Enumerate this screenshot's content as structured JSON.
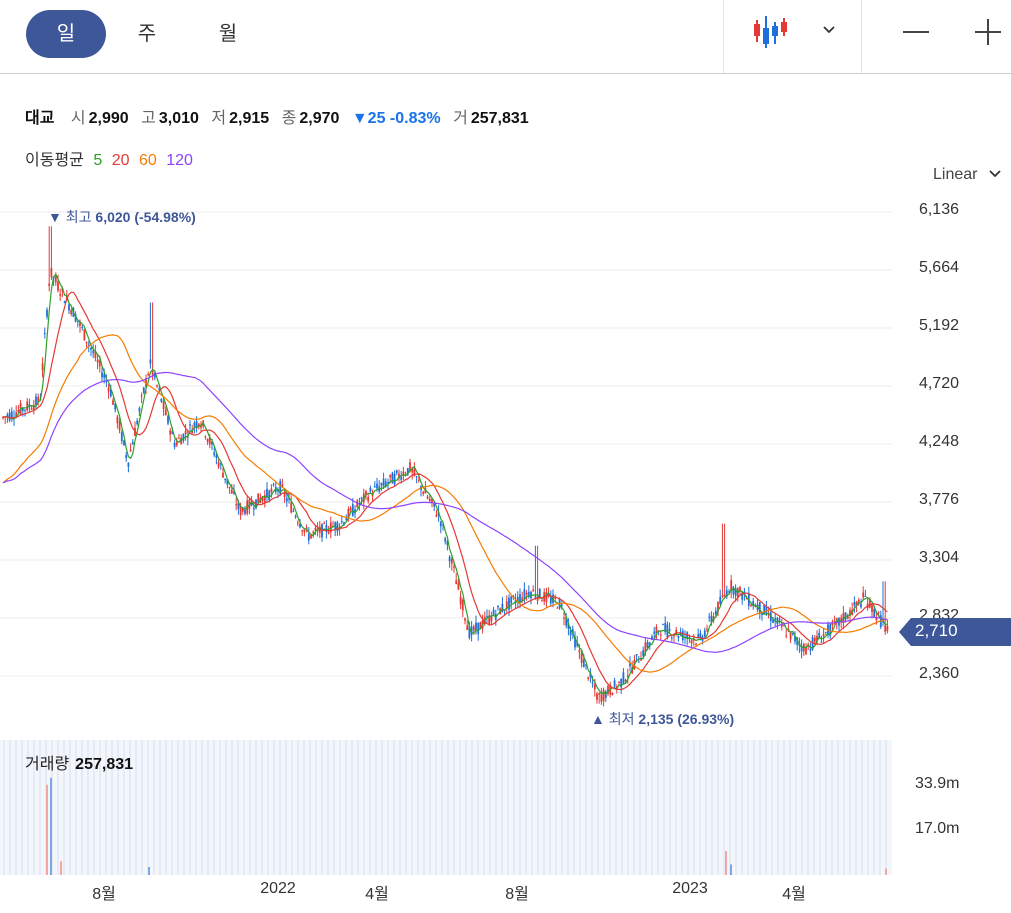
{
  "periods": [
    {
      "label": "일",
      "active": true
    },
    {
      "label": "주",
      "active": false
    },
    {
      "label": "월",
      "active": false
    }
  ],
  "icons": {
    "chart_type": "candlestick-icon",
    "dropdown": "chevron-down-icon",
    "zoom_out": "minus-icon",
    "zoom_in": "plus-icon",
    "scale_dropdown": "chevron-down-icon"
  },
  "quote": {
    "name": "대교",
    "open_label": "시",
    "open": "2,990",
    "high_label": "고",
    "high": "3,010",
    "low_label": "저",
    "low": "2,915",
    "close_label": "종",
    "close": "2,970",
    "change": "▼25 -0.83%",
    "volume_label": "거",
    "volume": "257,831"
  },
  "moving_average": {
    "label": "이동평균",
    "periods": [
      {
        "value": "5",
        "color": "#2ca02c"
      },
      {
        "value": "20",
        "color": "#e53935"
      },
      {
        "value": "60",
        "color": "#f57c00"
      },
      {
        "value": "120",
        "color": "#8e44ff"
      }
    ]
  },
  "scale_mode": "Linear",
  "current_price": "2,710",
  "extremes": {
    "high": {
      "label": "최고",
      "value": "6,020 (-54.98%)"
    },
    "low": {
      "label": "최저",
      "value": "2,135 (26.93%)"
    }
  },
  "volume": {
    "label": "거래량",
    "value": "257,831"
  },
  "colors": {
    "up": "#e53935",
    "down": "#1e6fd9",
    "accent": "#3e5799"
  },
  "chart_data": {
    "type": "candlestick",
    "price_axis": {
      "ticks": [
        "6,136",
        "5,664",
        "5,192",
        "4,720",
        "4,248",
        "3,776",
        "3,304",
        "2,832",
        "2,360"
      ],
      "ylim": [
        2100,
        6200
      ]
    },
    "volume_axis": {
      "ticks": [
        "33.9m",
        "17.0m"
      ]
    },
    "x_ticks": [
      "8월",
      "2022",
      "4월",
      "8월",
      "2023",
      "4월"
    ],
    "grid": true,
    "trend": [
      {
        "x": 0,
        "price": 4450
      },
      {
        "x": 40,
        "price": 4600
      },
      {
        "x": 50,
        "price": 5650
      },
      {
        "x": 75,
        "price": 5300
      },
      {
        "x": 110,
        "price": 4700
      },
      {
        "x": 128,
        "price": 4100
      },
      {
        "x": 150,
        "price": 4900
      },
      {
        "x": 175,
        "price": 4250
      },
      {
        "x": 200,
        "price": 4450
      },
      {
        "x": 240,
        "price": 3700
      },
      {
        "x": 280,
        "price": 3900
      },
      {
        "x": 308,
        "price": 3500
      },
      {
        "x": 340,
        "price": 3600
      },
      {
        "x": 370,
        "price": 3850
      },
      {
        "x": 410,
        "price": 4050
      },
      {
        "x": 440,
        "price": 3650
      },
      {
        "x": 470,
        "price": 2700
      },
      {
        "x": 500,
        "price": 2900
      },
      {
        "x": 530,
        "price": 3050
      },
      {
        "x": 560,
        "price": 2950
      },
      {
        "x": 598,
        "price": 2180
      },
      {
        "x": 620,
        "price": 2300
      },
      {
        "x": 660,
        "price": 2750
      },
      {
        "x": 700,
        "price": 2650
      },
      {
        "x": 730,
        "price": 3100
      },
      {
        "x": 770,
        "price": 2850
      },
      {
        "x": 805,
        "price": 2580
      },
      {
        "x": 840,
        "price": 2800
      },
      {
        "x": 865,
        "price": 3000
      },
      {
        "x": 888,
        "price": 2720
      }
    ],
    "volume_spikes": [
      {
        "x": 46,
        "volume": 33.9
      },
      {
        "x": 50,
        "volume": 36.5
      },
      {
        "x": 60,
        "volume": 5.2
      },
      {
        "x": 148,
        "volume": 3.0
      },
      {
        "x": 725,
        "volume": 9.0
      },
      {
        "x": 730,
        "volume": 4.0
      },
      {
        "x": 885,
        "volume": 2.5
      }
    ]
  }
}
